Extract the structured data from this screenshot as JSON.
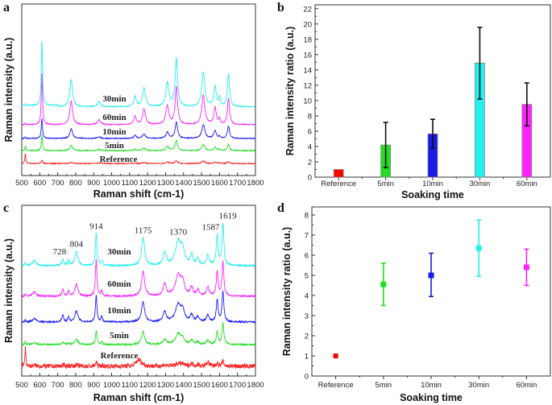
{
  "chart_data": [
    {
      "panel": "a",
      "type": "line",
      "xlabel": "Raman shift (cm-1)",
      "ylabel": "Raman intensity (a.u.)",
      "xlim": [
        500,
        1800
      ],
      "xticks": [
        500,
        600,
        700,
        800,
        900,
        1000,
        1100,
        1200,
        1300,
        1400,
        1500,
        1600,
        1700,
        1800
      ],
      "ylim": [
        0,
        100
      ],
      "y_ticks_shown": false,
      "peak_positions": [
        520,
        612,
        775,
        930,
        1130,
        1180,
        1310,
        1360,
        1510,
        1575,
        1600,
        1650
      ],
      "peak_widths": [
        3,
        4,
        9,
        10,
        8,
        10,
        10,
        8,
        10,
        8,
        5,
        7
      ],
      "series": [
        {
          "name": "Reference",
          "color": "#ff2020",
          "offset": 7,
          "peak_heights": [
            6,
            2,
            0.7,
            0.3,
            0.3,
            0.6,
            0.8,
            1.5,
            1.5,
            0.8,
            0.3,
            1.2
          ]
        },
        {
          "name": "5min",
          "color": "#22dd22",
          "offset": 14.5,
          "peak_heights": [
            2.5,
            9,
            3,
            0.8,
            0.8,
            1.5,
            2.5,
            6,
            3.5,
            2,
            0.6,
            3.5
          ]
        },
        {
          "name": "10min",
          "color": "#1a1aff",
          "offset": 21.6,
          "peak_heights": [
            0.8,
            12,
            5.6,
            1,
            1.8,
            2.5,
            3.5,
            9.4,
            8,
            4.7,
            1,
            7
          ]
        },
        {
          "name": "60min",
          "color": "#ff22ff",
          "offset": 29.6,
          "peak_heights": [
            1,
            30,
            14,
            3,
            5,
            9,
            11,
            22,
            17,
            10,
            3,
            15
          ]
        },
        {
          "name": "30min",
          "color": "#22eeee",
          "offset": 40,
          "peak_heights": [
            1,
            38,
            16,
            3,
            6,
            11,
            14,
            28,
            20,
            12,
            5,
            19
          ]
        }
      ]
    },
    {
      "panel": "b",
      "type": "bar",
      "xlabel": "Soaking time",
      "ylabel": "Raman intensity ratio (a.u.)",
      "categories": [
        "Reference",
        "5min",
        "10min",
        "30min",
        "60min"
      ],
      "values": [
        1,
        4.2,
        5.65,
        14.9,
        9.5
      ],
      "error_low": [
        1,
        1.25,
        3.75,
        10.2,
        6.7
      ],
      "error_high": [
        1,
        7.15,
        7.55,
        19.55,
        12.3
      ],
      "colors": [
        "#ff0000",
        "#22dd22",
        "#1a1ae6",
        "#22f0f0",
        "#ff22ff"
      ],
      "ylim": [
        0,
        22.5
      ],
      "yticks": [
        0,
        2,
        4,
        6,
        8,
        10,
        12,
        14,
        16,
        18,
        20,
        22
      ]
    },
    {
      "panel": "c",
      "type": "line",
      "xlabel": "Raman shift (cm-1)",
      "ylabel": "Raman intensity (a.u.)",
      "xlim": [
        500,
        1800
      ],
      "xticks": [
        500,
        600,
        700,
        800,
        900,
        1000,
        1100,
        1200,
        1300,
        1400,
        1500,
        1600,
        1700,
        1800
      ],
      "ylim": [
        0,
        100
      ],
      "y_ticks_shown": false,
      "annotations": [
        "728",
        "804",
        "914",
        "1175",
        "1370",
        "1587",
        "1619"
      ],
      "peak_positions": [
        520,
        570,
        728,
        760,
        804,
        914,
        945,
        1150,
        1175,
        1295,
        1370,
        1395,
        1445,
        1480,
        1535,
        1587,
        1619
      ],
      "peak_widths": [
        3,
        12,
        6,
        5,
        10,
        5,
        5,
        15,
        10,
        10,
        18,
        12,
        9,
        8,
        9,
        6,
        6
      ],
      "series": [
        {
          "name": "Reference",
          "color": "#ff2020",
          "offset": 5.7,
          "peak_heights": [
            11,
            0.5,
            0.8,
            0.6,
            0.8,
            2.5,
            0.5,
            4,
            0.5,
            0.8,
            1.5,
            1,
            1.5,
            1,
            2.5,
            2,
            3
          ]
        },
        {
          "name": "5min",
          "color": "#22dd22",
          "offset": 18.4,
          "peak_heights": [
            2,
            1,
            1.5,
            1,
            3,
            8,
            1.5,
            0,
            7.5,
            3,
            6,
            3,
            2.5,
            1.5,
            2.5,
            7.5,
            12.3
          ]
        },
        {
          "name": "10min",
          "color": "#1a1aff",
          "offset": 31.6,
          "peak_heights": [
            1.5,
            2,
            4,
            3,
            6.5,
            15.5,
            3,
            0,
            12,
            6,
            10,
            6,
            4,
            3,
            4,
            12.7,
            17.5
          ]
        },
        {
          "name": "60min",
          "color": "#ff22ff",
          "offset": 46.7,
          "peak_heights": [
            1.5,
            2.5,
            4,
            3,
            7,
            21.7,
            3,
            0,
            14.6,
            7,
            12,
            7,
            5,
            3.5,
            5,
            14,
            19.8
          ]
        },
        {
          "name": "30min",
          "color": "#22eeee",
          "offset": 64.6,
          "peak_heights": [
            2,
            3,
            4,
            3,
            8.5,
            19,
            3,
            0,
            16.5,
            8,
            14,
            8,
            6,
            4,
            6,
            17.5,
            24.5
          ]
        }
      ]
    },
    {
      "panel": "d",
      "type": "scatter",
      "xlabel": "Soaking time",
      "ylabel": "Raman intensity ratio (a.u.)",
      "categories": [
        "Reference",
        "5min",
        "10min",
        "30min",
        "60min"
      ],
      "values": [
        1,
        4.55,
        5.0,
        6.35,
        5.4
      ],
      "error_low": [
        1,
        3.5,
        3.95,
        4.95,
        4.5
      ],
      "error_high": [
        1,
        5.6,
        6.1,
        7.75,
        6.3
      ],
      "colors": [
        "#ff0000",
        "#22dd22",
        "#1a1ae6",
        "#22f0f0",
        "#ff22ff"
      ],
      "ylim": [
        0,
        8.4
      ],
      "yticks": [
        0,
        1,
        2,
        3,
        4,
        5,
        6,
        7,
        8
      ]
    }
  ]
}
